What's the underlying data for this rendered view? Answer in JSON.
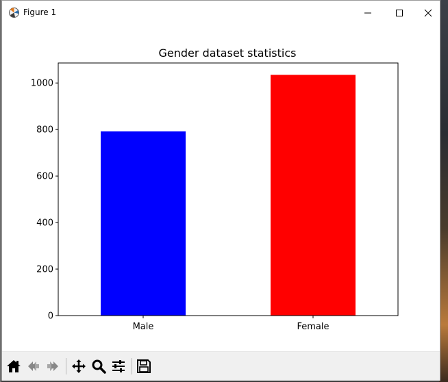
{
  "window": {
    "title": "Figure 1"
  },
  "toolbar": {
    "tools": [
      "home-icon",
      "back-icon",
      "forward-icon",
      "pan-icon",
      "zoom-icon",
      "configure-subplots-icon",
      "save-icon"
    ]
  },
  "chart_data": {
    "type": "bar",
    "title": "Gender dataset statistics",
    "categories": [
      "Male",
      "Female"
    ],
    "values": [
      792,
      1035
    ],
    "colors": [
      "#0000ff",
      "#ff0000"
    ],
    "xlabel": "",
    "ylabel": "",
    "ylim": [
      0,
      1086
    ],
    "yticks": [
      0,
      200,
      400,
      600,
      800,
      1000
    ],
    "grid": false
  }
}
